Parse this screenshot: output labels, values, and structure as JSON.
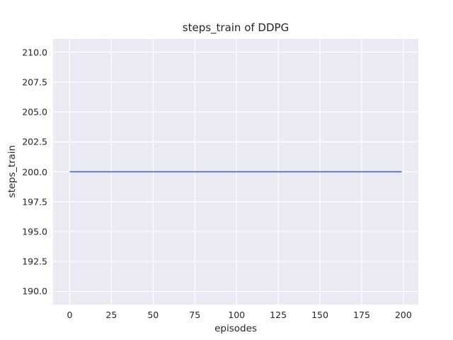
{
  "chart_data": {
    "type": "line",
    "title": "steps_train of DDPG",
    "xlabel": "episodes",
    "ylabel": "steps_train",
    "xlim": [
      -9.95,
      208.95
    ],
    "ylim": [
      188.9,
      211.1
    ],
    "x_ticks": [
      "0",
      "25",
      "50",
      "75",
      "100",
      "125",
      "150",
      "175",
      "200"
    ],
    "y_ticks": [
      "190.0",
      "192.5",
      "195.0",
      "197.5",
      "200.0",
      "202.5",
      "205.0",
      "207.5",
      "210.0"
    ],
    "grid": true,
    "legend": false,
    "series": [
      {
        "name": "steps_train",
        "x": [
          0,
          199
        ],
        "values": [
          200,
          200
        ],
        "color": "#4c72b0",
        "note": "constant horizontal line at y=200 across all episodes"
      }
    ],
    "colors": {
      "figure_background": "#ffffff",
      "plot_background": "#eaeaf2",
      "gridline": "#ffffff",
      "text": "#262626"
    }
  }
}
